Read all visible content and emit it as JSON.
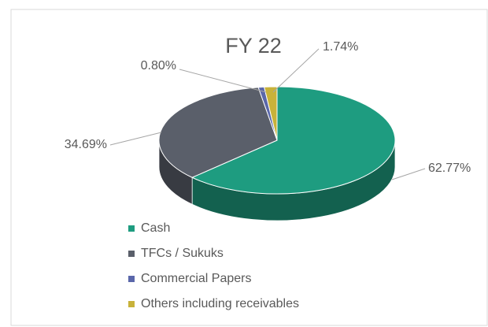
{
  "chart_data": {
    "type": "pie",
    "title": "FY 22",
    "categories": [
      "Cash",
      "TFCs / Sukuks",
      "Commercial Papers",
      "Others including receivables"
    ],
    "values": [
      62.77,
      34.69,
      0.8,
      1.74
    ],
    "value_labels": [
      "62.77%",
      "34.69%",
      "0.80%",
      "1.74%"
    ],
    "colors": [
      "#1e9c80",
      "#5a5f6a",
      "#5a67aa",
      "#c8b23a"
    ],
    "legend": "bottom-left"
  }
}
